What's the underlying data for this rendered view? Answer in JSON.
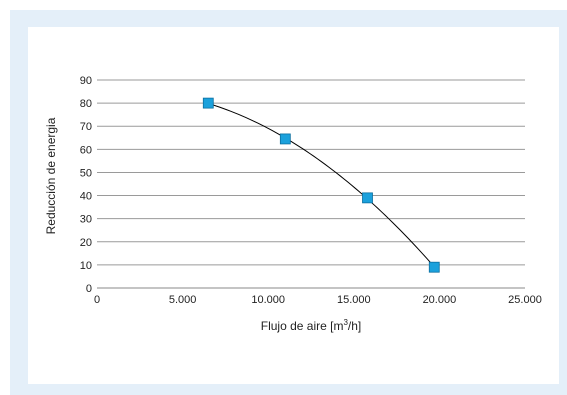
{
  "chart_data": {
    "type": "scatter",
    "title": "",
    "xlabel": "Flujo de aire [m",
    "xlabel_sup": "3",
    "xlabel_end": "/h]",
    "ylabel": "Reducción de energia",
    "xlim": [
      0,
      25000
    ],
    "ylim": [
      0,
      90
    ],
    "x_tick_labels": [
      "0",
      "5.000",
      "10.000",
      "15.000",
      "20.000",
      "25.000"
    ],
    "x_tick_values": [
      0,
      5000,
      10000,
      15000,
      20000,
      25000
    ],
    "y_tick_labels": [
      "0",
      "10",
      "20",
      "30",
      "40",
      "50",
      "60",
      "70",
      "80",
      "90"
    ],
    "y_tick_values": [
      0,
      10,
      20,
      30,
      40,
      50,
      60,
      70,
      80,
      90
    ],
    "grid": true,
    "trendline": "polynomial",
    "series": [
      {
        "x": [
          6500,
          11000,
          15800,
          19700
        ],
        "y": [
          80,
          64.5,
          39,
          9
        ],
        "marker": "square",
        "color": "#1ba1dc",
        "line_color": "#000000"
      }
    ]
  }
}
